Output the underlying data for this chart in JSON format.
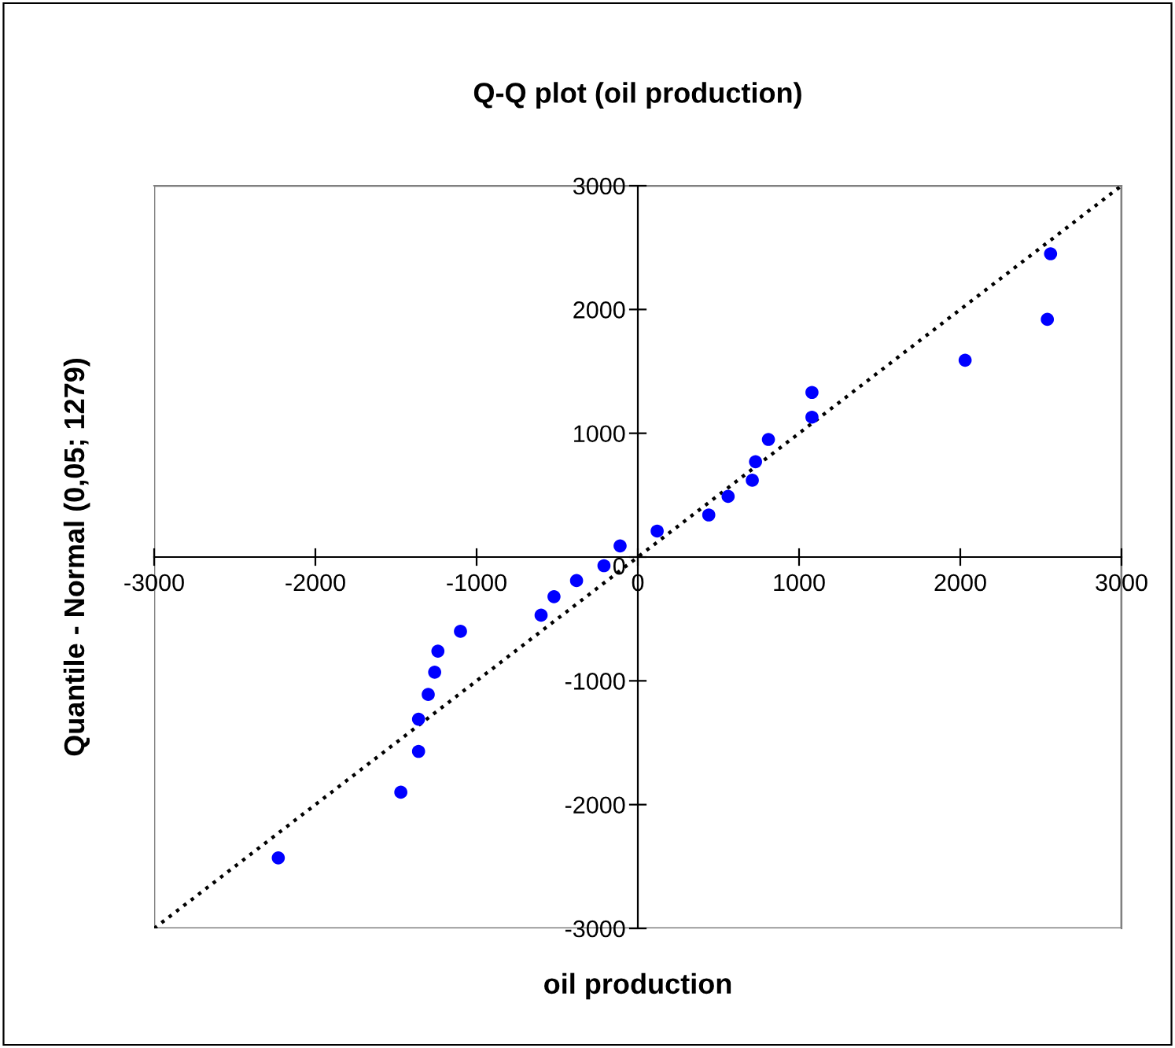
{
  "chart_data": {
    "type": "scatter",
    "title": "Q-Q plot (oil production)",
    "xlabel": "oil production",
    "ylabel": "Quantile - Normal (0,05; 1279)",
    "xlim": [
      -3000,
      3000
    ],
    "ylim": [
      -3000,
      3000
    ],
    "xticks": [
      -3000,
      -2000,
      -1000,
      0,
      1000,
      2000,
      3000
    ],
    "yticks": [
      -3000,
      -2000,
      -1000,
      0,
      1000,
      2000,
      3000
    ],
    "grid": false,
    "legend": false,
    "series": [
      {
        "color": "#0000ff",
        "marker": "circle",
        "x": [
          -2230,
          -1470,
          -1360,
          -1360,
          -1300,
          -1260,
          -1240,
          -1100,
          -600,
          -520,
          -380,
          -210,
          -110,
          120,
          440,
          560,
          710,
          730,
          810,
          1080,
          1080,
          2030,
          2540,
          2560
        ],
        "values": [
          -2430,
          -1900,
          -1570,
          -1310,
          -1110,
          -930,
          -760,
          -600,
          -470,
          -320,
          -190,
          -70,
          90,
          210,
          340,
          490,
          620,
          770,
          950,
          1130,
          1330,
          1590,
          1920,
          2450
        ]
      },
      {
        "type": "line",
        "color": "#000000",
        "marker": "none",
        "line_style": "dotted",
        "x": [
          -3000,
          0,
          3000
        ],
        "values": [
          -3000,
          0,
          3000
        ]
      }
    ]
  }
}
